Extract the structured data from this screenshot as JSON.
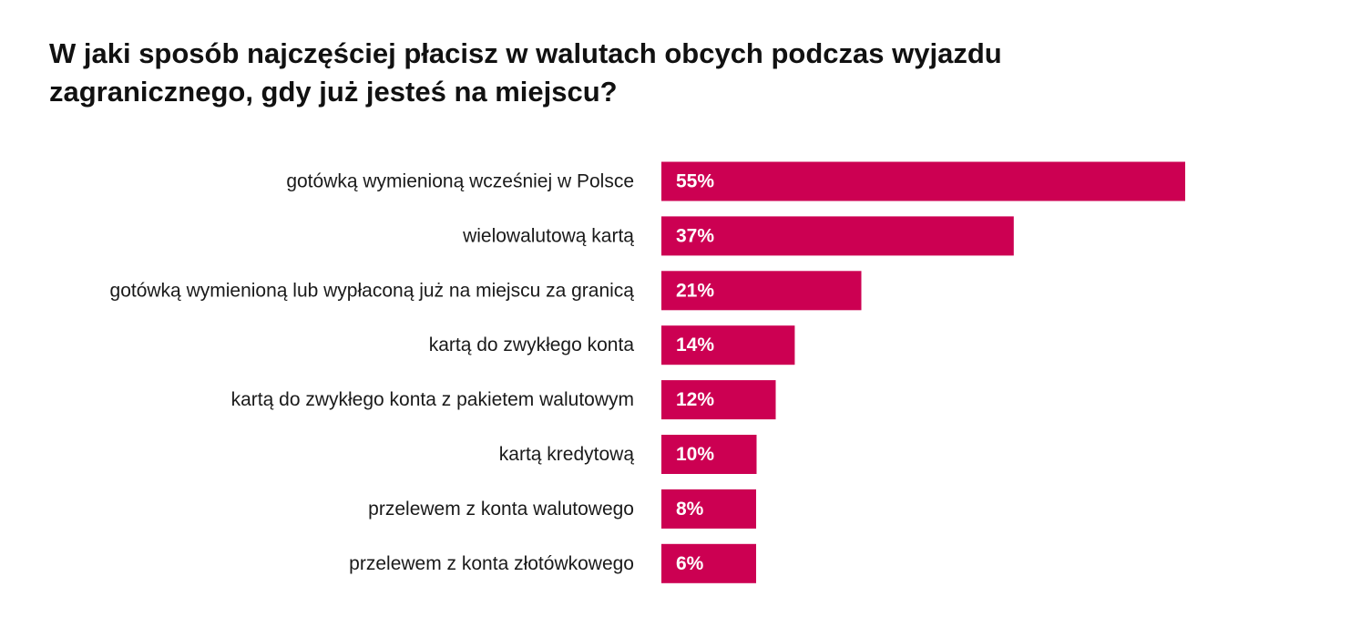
{
  "colors": {
    "bar": "#cc0052",
    "text": "#1a1a1a",
    "value_text": "#ffffff",
    "background": "#ffffff"
  },
  "chart_data": {
    "type": "bar",
    "orientation": "horizontal",
    "title": "W jaki sposób najczęściej płacisz w walutach obcych podczas wyjazdu zagranicznego, gdy już jesteś na miejscu?",
    "xlabel": "",
    "ylabel": "",
    "unit": "%",
    "xlim": [
      0,
      55
    ],
    "grid": false,
    "legend": "none",
    "categories": [
      "gotówką wymienioną wcześniej w Polsce",
      "wielowalutową kartą",
      "gotówką wymienioną lub wypłaconą już na miejscu za granicą",
      "kartą do zwykłego konta",
      "kartą do zwykłego konta z pakietem walutowym",
      "kartą kredytową",
      "przelewem z konta walutowego",
      "przelewem z konta złotówkowego"
    ],
    "values": [
      55,
      37,
      21,
      14,
      12,
      10,
      8,
      6
    ],
    "value_labels": [
      "55%",
      "37%",
      "21%",
      "14%",
      "12%",
      "10%",
      "8%",
      "6%"
    ]
  }
}
